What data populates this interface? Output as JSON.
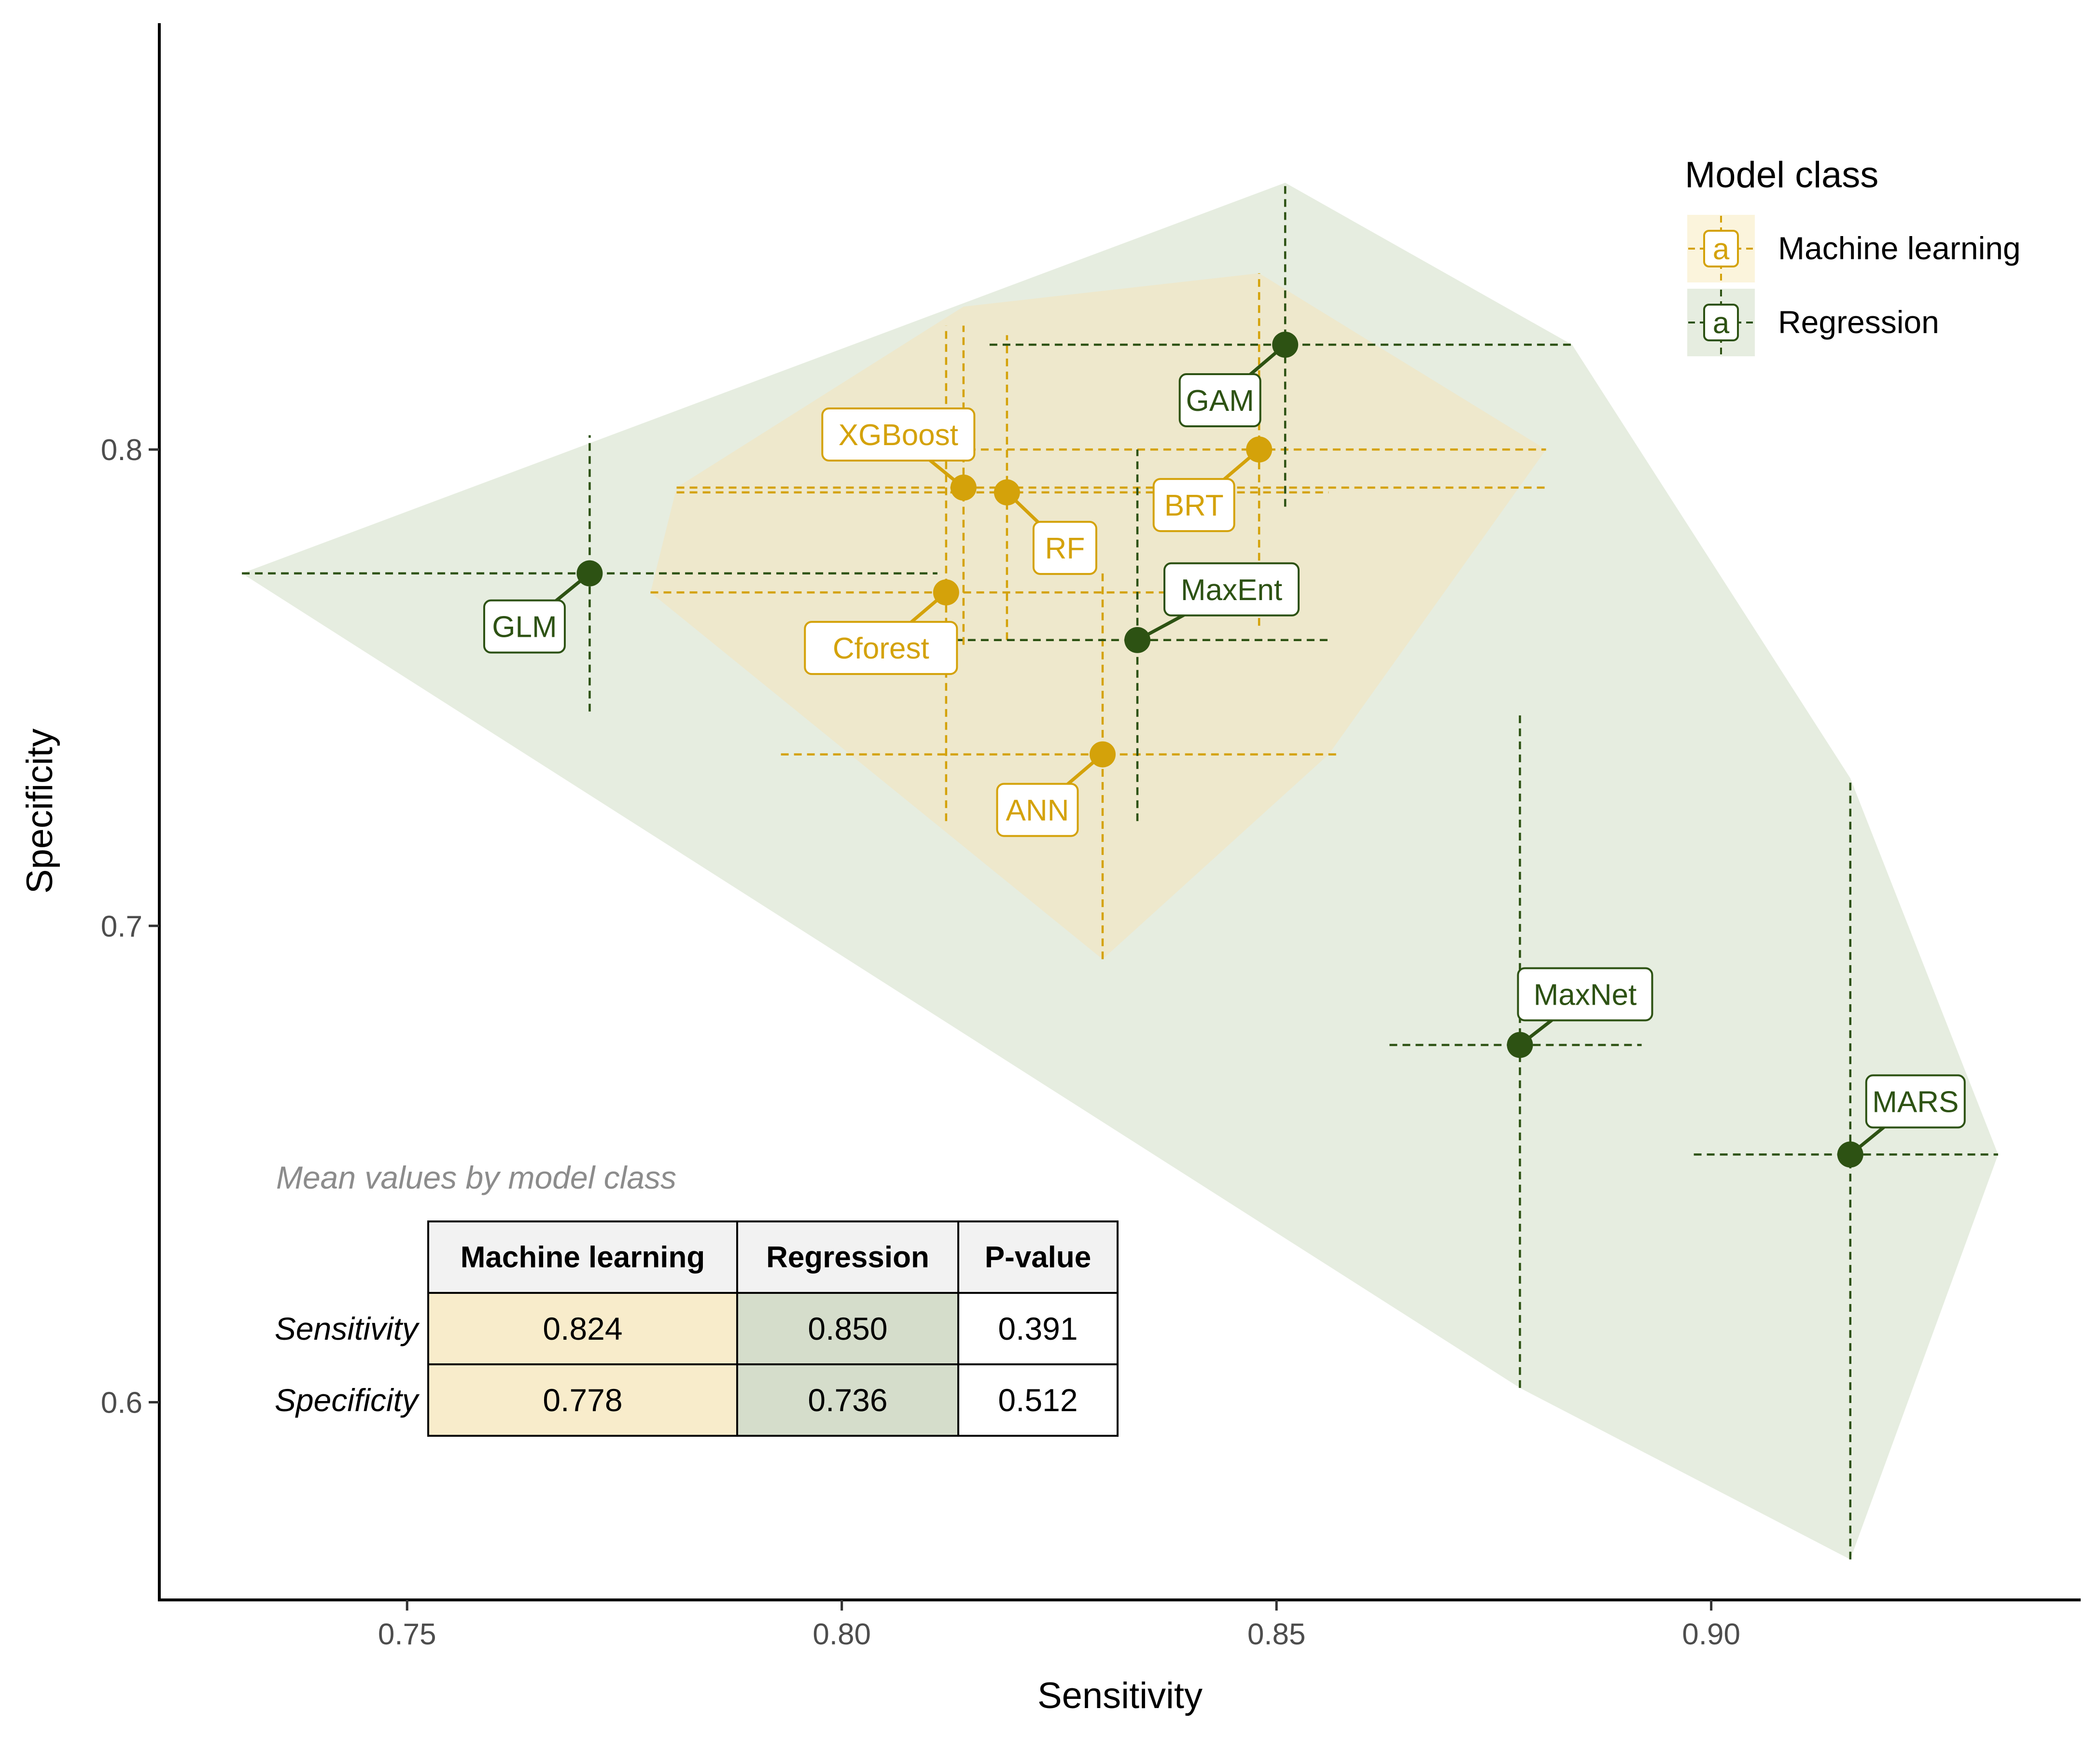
{
  "chart_data": {
    "type": "scatter",
    "title": "",
    "xlabel": "Sensitivity",
    "ylabel": "Specificity",
    "xlim": [
      0.7215,
      0.9425
    ],
    "ylim": [
      0.5585,
      0.8895
    ],
    "x_ticks": [
      {
        "value": 0.75,
        "label": "0.75"
      },
      {
        "value": 0.8,
        "label": "0.80"
      },
      {
        "value": 0.85,
        "label": "0.85"
      },
      {
        "value": 0.9,
        "label": "0.90"
      }
    ],
    "y_ticks": [
      {
        "value": 0.6,
        "label": "0.6"
      },
      {
        "value": 0.7,
        "label": "0.7"
      },
      {
        "value": 0.8,
        "label": "0.8"
      }
    ],
    "grid": false,
    "legend": {
      "title": "Model class",
      "placement": "top-right",
      "glyph": "a",
      "entries": [
        {
          "name": "Machine learning",
          "color": "#d4a20a",
          "fill": "#fbf4dc"
        },
        {
          "name": "Regression",
          "color": "#2d5213",
          "fill": "#e6ede0"
        }
      ]
    },
    "series": [
      {
        "name": "Machine learning",
        "color": "#d4a20a",
        "hull_color": "#eee6c8",
        "points": [
          {
            "label": "XGBoost",
            "x": 0.814,
            "y": 0.792,
            "x_err": [
              0.781,
              0.881
            ],
            "y_err": [
              0.759,
              0.826
            ]
          },
          {
            "label": "RF",
            "x": 0.819,
            "y": 0.791,
            "x_err": [
              0.781,
              0.856
            ],
            "y_err": [
              0.76,
              0.824
            ]
          },
          {
            "label": "Cforest",
            "x": 0.812,
            "y": 0.77,
            "x_err": [
              0.778,
              0.846
            ],
            "y_err": [
              0.722,
              0.826
            ]
          },
          {
            "label": "BRT",
            "x": 0.848,
            "y": 0.8,
            "x_err": [
              0.813,
              0.881
            ],
            "y_err": [
              0.763,
              0.837
            ]
          },
          {
            "label": "ANN",
            "x": 0.83,
            "y": 0.736,
            "x_err": [
              0.793,
              0.857
            ],
            "y_err": [
              0.693,
              0.775
            ]
          }
        ]
      },
      {
        "name": "Regression",
        "color": "#2d5213",
        "hull_color": "#e6ede0",
        "points": [
          {
            "label": "GLM",
            "x": 0.771,
            "y": 0.774,
            "x_err": [
              0.731,
              0.811
            ],
            "y_err": [
              0.745,
              0.803
            ]
          },
          {
            "label": "GAM",
            "x": 0.851,
            "y": 0.822,
            "x_err": [
              0.817,
              0.884
            ],
            "y_err": [
              0.788,
              0.856
            ]
          },
          {
            "label": "MaxEnt",
            "x": 0.834,
            "y": 0.76,
            "x_err": [
              0.813,
              0.856
            ],
            "y_err": [
              0.722,
              0.8
            ]
          },
          {
            "label": "MaxNet",
            "x": 0.878,
            "y": 0.675,
            "x_err": [
              0.863,
              0.892
            ],
            "y_err": [
              0.603,
              0.745
            ]
          },
          {
            "label": "MARS",
            "x": 0.916,
            "y": 0.652,
            "x_err": [
              0.898,
              0.933
            ],
            "y_err": [
              0.567,
              0.731
            ]
          }
        ]
      }
    ],
    "hulls": {
      "Machine learning": [
        [
          0.814,
          0.83
        ],
        [
          0.848,
          0.837
        ],
        [
          0.881,
          0.8
        ],
        [
          0.856,
          0.736
        ],
        [
          0.83,
          0.693
        ],
        [
          0.778,
          0.77
        ],
        [
          0.781,
          0.792
        ]
      ],
      "Regression": [
        [
          0.731,
          0.774
        ],
        [
          0.851,
          0.856
        ],
        [
          0.884,
          0.822
        ],
        [
          0.916,
          0.731
        ],
        [
          0.933,
          0.652
        ],
        [
          0.916,
          0.567
        ],
        [
          0.878,
          0.603
        ]
      ]
    }
  },
  "table": {
    "caption": "Mean values by model class",
    "headers": [
      "Machine learning",
      "Regression",
      "P-value"
    ],
    "rows": [
      {
        "label": "Sensitivity",
        "values": [
          "0.824",
          "0.850",
          "0.391"
        ]
      },
      {
        "label": "Specificity",
        "values": [
          "0.778",
          "0.736",
          "0.512"
        ]
      }
    ],
    "colors": {
      "ml": "#f8eccb",
      "reg": "#d5ddcb",
      "header": "#f2f2f2"
    }
  }
}
